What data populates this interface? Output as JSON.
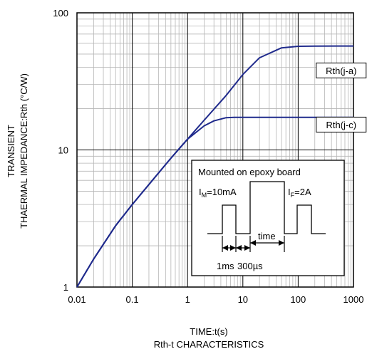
{
  "chart_data": {
    "type": "line",
    "xscale": "log",
    "yscale": "log",
    "xlim": [
      0.01,
      1000
    ],
    "ylim": [
      1,
      100
    ],
    "grid": true,
    "xlabel": "TIME:t(s)",
    "caption": "Rth-t CHARACTERISTICS",
    "ylabel_line1": "TRANSIENT",
    "ylabel_line2": "THAERMAL IMPEDANCE:Rth (°C/W)",
    "x_ticks": [
      {
        "value": 0.01,
        "label": "0.01"
      },
      {
        "value": 0.1,
        "label": "0.1"
      },
      {
        "value": 1,
        "label": "1"
      },
      {
        "value": 10,
        "label": "10"
      },
      {
        "value": 100,
        "label": "100"
      },
      {
        "value": 1000,
        "label": "1000"
      }
    ],
    "y_ticks": [
      {
        "value": 1,
        "label": "1"
      },
      {
        "value": 10,
        "label": "10"
      },
      {
        "value": 100,
        "label": "100"
      }
    ],
    "series_color": "#1f2a8c",
    "series": [
      {
        "name": "Rth(j-a)",
        "label_at": [
          600,
          38
        ],
        "x": [
          0.01,
          0.02,
          0.05,
          0.1,
          0.2,
          0.5,
          1,
          2,
          5,
          10,
          20,
          50,
          100,
          200,
          500,
          1000
        ],
        "y": [
          1.0,
          1.6,
          2.8,
          4.0,
          5.6,
          8.7,
          12.0,
          16.5,
          25.0,
          35.5,
          47.0,
          55.5,
          57.0,
          57.2,
          57.3,
          57.3
        ]
      },
      {
        "name": "Rth(j-c)",
        "label_at": [
          600,
          15.3
        ],
        "x": [
          0.01,
          0.02,
          0.05,
          0.1,
          0.2,
          0.5,
          1,
          2,
          3,
          5,
          7,
          10,
          20,
          50,
          100,
          1000
        ],
        "y": [
          1.0,
          1.6,
          2.8,
          4.0,
          5.6,
          8.7,
          12.0,
          15.0,
          16.3,
          17.2,
          17.3,
          17.3,
          17.3,
          17.3,
          17.3,
          17.3
        ]
      }
    ]
  },
  "inset": {
    "title": "Mounted on epoxy board",
    "im_label": "I",
    "im_sub": "M",
    "im_value": "=10mA",
    "if_label": "I",
    "if_sub": "F",
    "if_value": "=2A",
    "time_label": "time",
    "ms_label": "1ms",
    "us_label": "300µs"
  }
}
